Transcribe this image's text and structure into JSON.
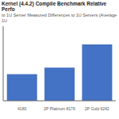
{
  "chart_data": {
    "type": "bar",
    "title": "Kernel (4.4.2) Compile Benchmark Relative Perfo",
    "subtitle": "to 1U Server Measured Differences to 1U Servers (Average 1U",
    "categories": [
      "4180",
      "2P Platinum 8176",
      "2P Gold 6242"
    ],
    "values": [
      3.2,
      4.0,
      6.8
    ],
    "color": "#4472C4",
    "ylim": [
      0,
      9
    ],
    "grid": false,
    "tick_labels": "x"
  }
}
